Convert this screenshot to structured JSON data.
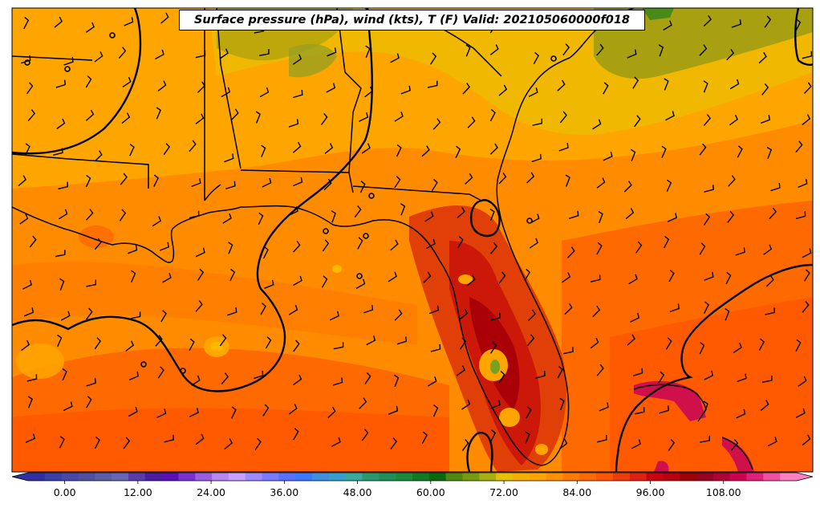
{
  "title": "Surface pressure (hPa), wind (kts), T (F) Valid: 202105060000f018",
  "colorbar": {
    "ticks": [
      {
        "label": "0.00",
        "value": 0
      },
      {
        "label": "12.00",
        "value": 12
      },
      {
        "label": "24.00",
        "value": 24
      },
      {
        "label": "36.00",
        "value": 36
      },
      {
        "label": "48.00",
        "value": 48
      },
      {
        "label": "60.00",
        "value": 60
      },
      {
        "label": "72.00",
        "value": 72
      },
      {
        "label": "84.00",
        "value": 84
      },
      {
        "label": "96.00",
        "value": 96
      },
      {
        "label": "108.00",
        "value": 108
      }
    ],
    "range": [
      -6,
      120
    ],
    "colors": [
      "#3030a0",
      "#3b3fa8",
      "#4848a8",
      "#5050a0",
      "#5c5ca8",
      "#6666b4",
      "#5a3ca8",
      "#4a1ca0",
      "#5a10b4",
      "#7a30d0",
      "#9a5ce0",
      "#b887f0",
      "#c8a0ff",
      "#9e8cff",
      "#7a7cff",
      "#5a6eff",
      "#3a78ff",
      "#3f8ee0",
      "#3a9ecc",
      "#3aa89e",
      "#2a9a6e",
      "#20905a",
      "#1a8a3c",
      "#0f7a22",
      "#0a6a10",
      "#4f8a10",
      "#789a10",
      "#a8b010",
      "#e8c000",
      "#f5b000",
      "#ffa500",
      "#ff9000",
      "#ff7a00",
      "#ff6a00",
      "#ff5500",
      "#f03c0a",
      "#e02010",
      "#cc0010",
      "#b80010",
      "#a00008",
      "#9a0020",
      "#b00038",
      "#d00050",
      "#e0207a",
      "#f050a0",
      "#ff80c0"
    ]
  },
  "map_colors": {
    "ocean_south": "#ff6000",
    "ocean_mid": "#ff7a00",
    "land_main": "#ff8c00",
    "north_band": "#ffa500",
    "far_north": "#eebb00",
    "olive": "#a8a010",
    "green": "#4a8a1a",
    "hot": "#e04008",
    "hotter": "#cc1808",
    "hottest": "#aa0008",
    "keys": "#d0104a"
  }
}
